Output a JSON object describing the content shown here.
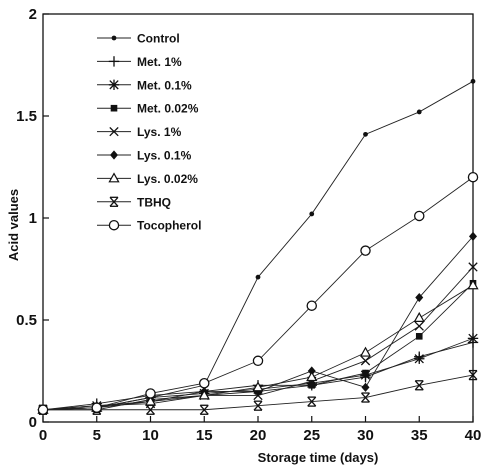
{
  "chart_data": {
    "type": "line",
    "xlabel": "Storage time (days)",
    "ylabel": "Acid values",
    "xlim": [
      0,
      40
    ],
    "ylim": [
      0,
      2
    ],
    "xticks": [
      0,
      5,
      10,
      15,
      20,
      25,
      30,
      35,
      40
    ],
    "yticks": [
      0,
      0.5,
      1,
      1.5,
      2
    ],
    "ytick_labels": [
      "0",
      "0.5",
      "1",
      "1.5",
      "2"
    ],
    "grid": false,
    "legend_position": "top-left",
    "x": [
      0,
      5,
      10,
      15,
      20,
      25,
      30,
      35,
      40
    ],
    "series": [
      {
        "name": "Control",
        "marker": "dot",
        "values": [
          0.06,
          0.07,
          0.12,
          0.18,
          0.71,
          1.02,
          1.41,
          1.52,
          1.67
        ]
      },
      {
        "name": "Met. 1%",
        "marker": "plus",
        "values": [
          0.06,
          0.09,
          0.13,
          0.15,
          0.18,
          0.18,
          0.22,
          0.32,
          0.39
        ]
      },
      {
        "name": "Met. 0.1%",
        "marker": "asterisk",
        "values": [
          0.06,
          0.07,
          0.12,
          0.14,
          0.16,
          0.19,
          0.23,
          0.31,
          0.41
        ]
      },
      {
        "name": "Met. 0.02%",
        "marker": "square",
        "values": [
          0.06,
          0.06,
          0.11,
          0.13,
          0.15,
          0.18,
          0.24,
          0.42,
          0.68
        ]
      },
      {
        "name": "Lys. 1%",
        "marker": "x",
        "values": [
          0.06,
          0.08,
          0.09,
          0.13,
          0.13,
          0.2,
          0.3,
          0.47,
          0.76
        ]
      },
      {
        "name": "Lys. 0.1%",
        "marker": "diamond",
        "values": [
          0.06,
          0.08,
          0.1,
          0.15,
          0.15,
          0.25,
          0.17,
          0.61,
          0.91
        ]
      },
      {
        "name": "Lys. 0.02%",
        "marker": "triangle",
        "values": [
          0.06,
          0.07,
          0.1,
          0.13,
          0.17,
          0.22,
          0.34,
          0.51,
          0.67
        ]
      },
      {
        "name": "TBHQ",
        "marker": "hourglass",
        "values": [
          0.06,
          0.06,
          0.06,
          0.06,
          0.08,
          0.1,
          0.12,
          0.18,
          0.23
        ]
      },
      {
        "name": "Tocopherol",
        "marker": "circle",
        "values": [
          0.06,
          0.07,
          0.14,
          0.19,
          0.3,
          0.57,
          0.84,
          1.01,
          1.2
        ]
      }
    ]
  }
}
